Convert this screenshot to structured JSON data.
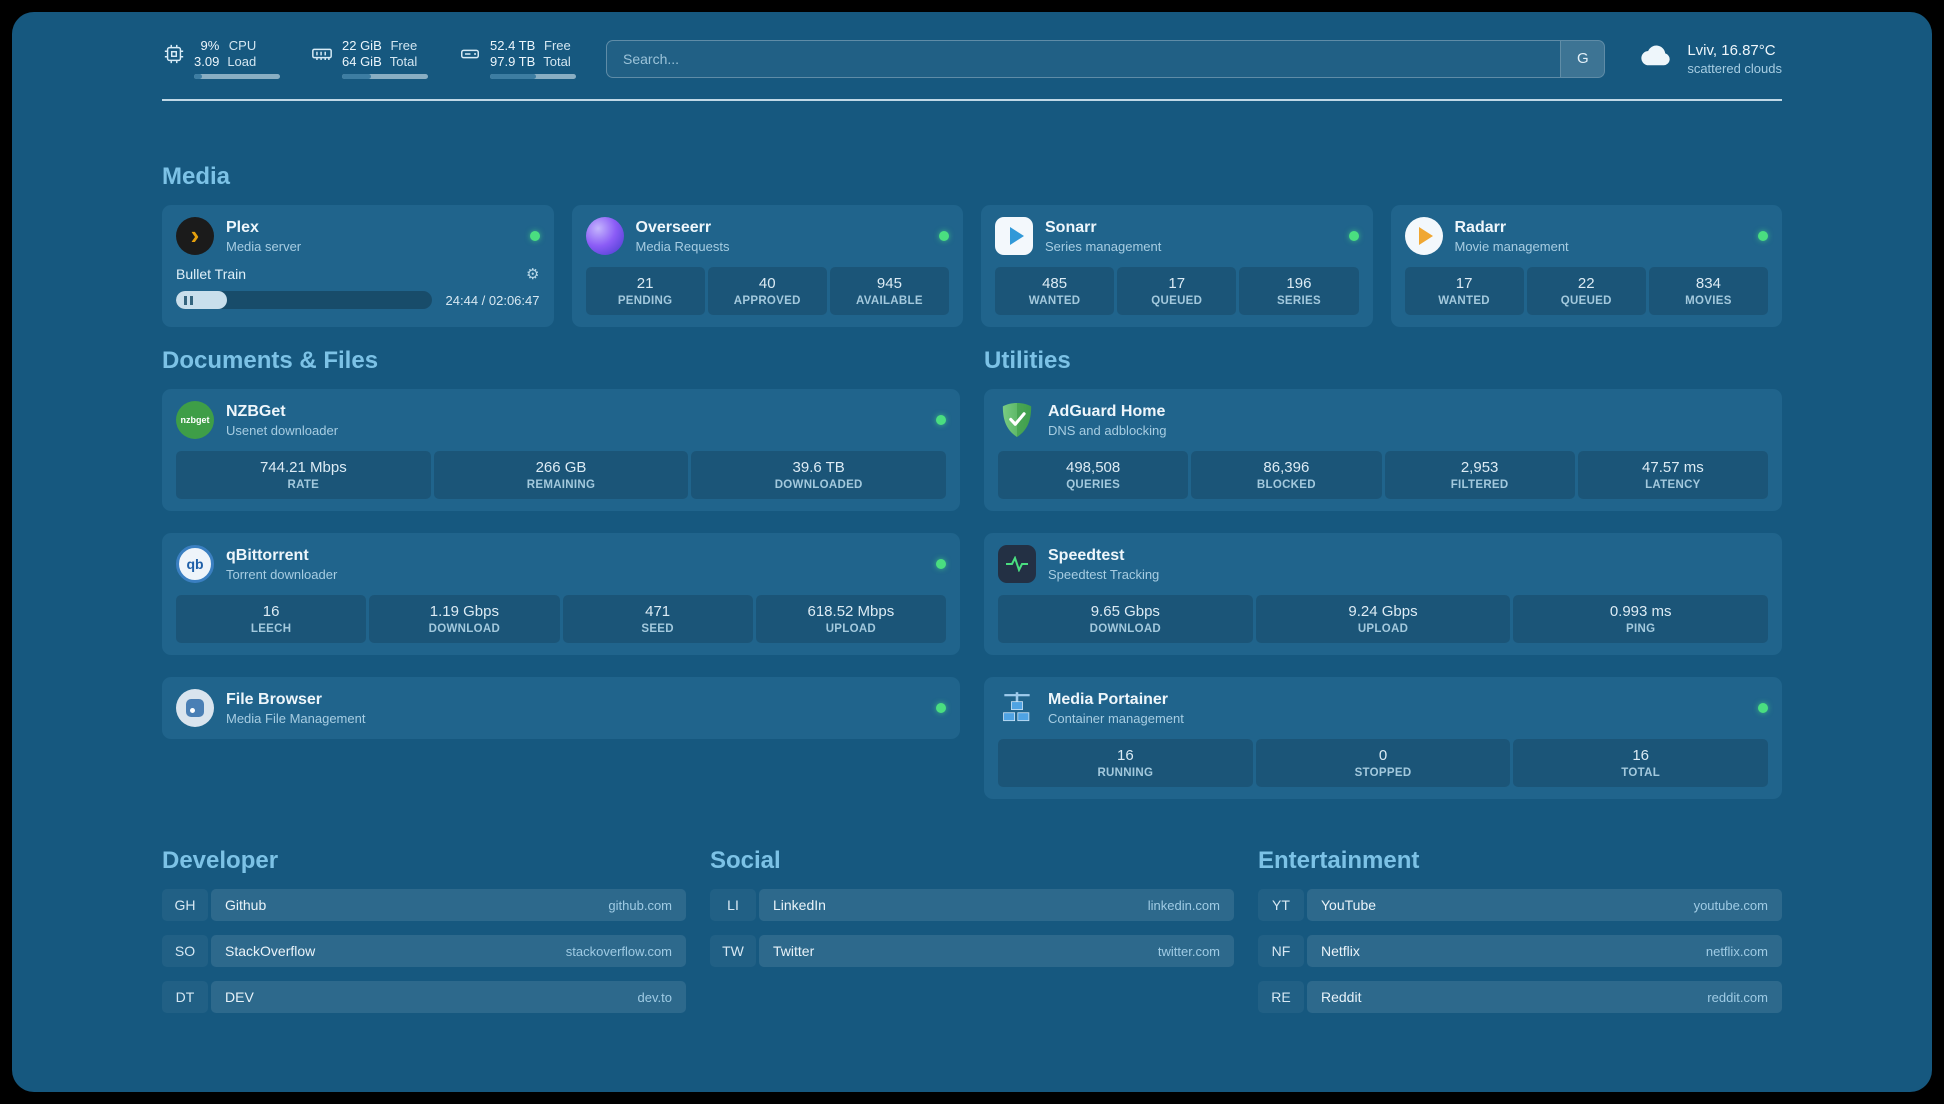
{
  "colors": {
    "page_bg": "#16587f",
    "card_bg": "#20648c",
    "heading": "#7cc2e6",
    "text_primary": "#eaf4fa",
    "text_secondary": "#a7cde2",
    "online_green": "#4ade80"
  },
  "topbar": {
    "cpu": {
      "v1": "9%",
      "v2": "3.09",
      "l1": "CPU",
      "l2": "Load",
      "percent": 9
    },
    "ram": {
      "v1": "22 GiB",
      "v2": "64 GiB",
      "l1": "Free",
      "l2": "Total",
      "percent": 34
    },
    "disk": {
      "v1": "52.4 TB",
      "v2": "97.9 TB",
      "l1": "Free",
      "l2": "Total",
      "percent": 54
    },
    "search": {
      "placeholder": "Search...",
      "provider": "G"
    },
    "weather": {
      "location": "Lviv, 16.87°C",
      "condition": "scattered clouds"
    }
  },
  "media": {
    "heading": "Media",
    "plex": {
      "name": "Plex",
      "subtitle": "Media server",
      "now_playing": "Bullet Train",
      "time": "24:44 / 02:06:47",
      "progress": 20
    },
    "overseerr": {
      "name": "Overseerr",
      "subtitle": "Media Requests",
      "stats": [
        {
          "value": "21",
          "label": "PENDING"
        },
        {
          "value": "40",
          "label": "APPROVED"
        },
        {
          "value": "945",
          "label": "AVAILABLE"
        }
      ]
    },
    "sonarr": {
      "name": "Sonarr",
      "subtitle": "Series management",
      "stats": [
        {
          "value": "485",
          "label": "WANTED"
        },
        {
          "value": "17",
          "label": "QUEUED"
        },
        {
          "value": "196",
          "label": "SERIES"
        }
      ]
    },
    "radarr": {
      "name": "Radarr",
      "subtitle": "Movie management",
      "stats": [
        {
          "value": "17",
          "label": "WANTED"
        },
        {
          "value": "22",
          "label": "QUEUED"
        },
        {
          "value": "834",
          "label": "MOVIES"
        }
      ]
    }
  },
  "documents": {
    "heading": "Documents & Files",
    "nzbget": {
      "name": "NZBGet",
      "subtitle": "Usenet downloader",
      "stats": [
        {
          "value": "744.21 Mbps",
          "label": "RATE"
        },
        {
          "value": "266 GB",
          "label": "REMAINING"
        },
        {
          "value": "39.6 TB",
          "label": "DOWNLOADED"
        }
      ]
    },
    "qbittorrent": {
      "name": "qBittorrent",
      "subtitle": "Torrent downloader",
      "stats": [
        {
          "value": "16",
          "label": "LEECH"
        },
        {
          "value": "1.19 Gbps",
          "label": "DOWNLOAD"
        },
        {
          "value": "471",
          "label": "SEED"
        },
        {
          "value": "618.52 Mbps",
          "label": "UPLOAD"
        }
      ]
    },
    "filebrowser": {
      "name": "File Browser",
      "subtitle": "Media File Management"
    }
  },
  "utilities": {
    "heading": "Utilities",
    "adguard": {
      "name": "AdGuard Home",
      "subtitle": "DNS and adblocking",
      "stats": [
        {
          "value": "498,508",
          "label": "QUERIES"
        },
        {
          "value": "86,396",
          "label": "BLOCKED"
        },
        {
          "value": "2,953",
          "label": "FILTERED"
        },
        {
          "value": "47.57 ms",
          "label": "LATENCY"
        }
      ]
    },
    "speedtest": {
      "name": "Speedtest",
      "subtitle": "Speedtest Tracking",
      "stats": [
        {
          "value": "9.65 Gbps",
          "label": "DOWNLOAD"
        },
        {
          "value": "9.24 Gbps",
          "label": "UPLOAD"
        },
        {
          "value": "0.993 ms",
          "label": "PING"
        }
      ]
    },
    "portainer": {
      "name": "Media Portainer",
      "subtitle": "Container management",
      "stats": [
        {
          "value": "16",
          "label": "RUNNING"
        },
        {
          "value": "0",
          "label": "STOPPED"
        },
        {
          "value": "16",
          "label": "TOTAL"
        }
      ]
    }
  },
  "bookmarks": {
    "groups": [
      {
        "title": "Developer",
        "items": [
          {
            "abbr": "GH",
            "name": "Github",
            "domain": "github.com"
          },
          {
            "abbr": "SO",
            "name": "StackOverflow",
            "domain": "stackoverflow.com"
          },
          {
            "abbr": "DT",
            "name": "DEV",
            "domain": "dev.to"
          }
        ]
      },
      {
        "title": "Social",
        "items": [
          {
            "abbr": "LI",
            "name": "LinkedIn",
            "domain": "linkedin.com"
          },
          {
            "abbr": "TW",
            "name": "Twitter",
            "domain": "twitter.com"
          }
        ]
      },
      {
        "title": "Entertainment",
        "items": [
          {
            "abbr": "YT",
            "name": "YouTube",
            "domain": "youtube.com"
          },
          {
            "abbr": "NF",
            "name": "Netflix",
            "domain": "netflix.com"
          },
          {
            "abbr": "RE",
            "name": "Reddit",
            "domain": "reddit.com"
          }
        ]
      }
    ]
  },
  "icons": {
    "nzbget_text": "nzbget",
    "qb_text": "qb"
  }
}
